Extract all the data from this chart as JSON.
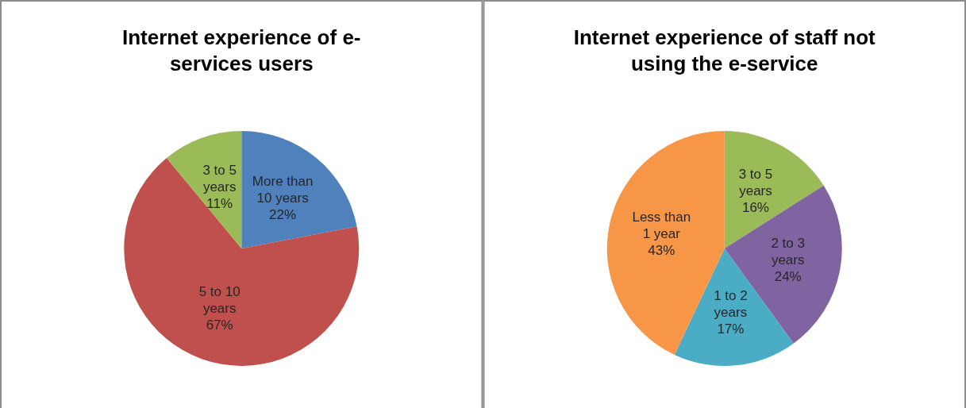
{
  "chart_data": [
    {
      "type": "pie",
      "title": "Internet experience of e-\nservices users",
      "categories": [
        "More than 10 years",
        "5 to 10 years",
        "3 to 5 years"
      ],
      "values": [
        22,
        67,
        11
      ],
      "colors": [
        "#4f81bd",
        "#c0504d",
        "#9bbb59"
      ],
      "value_labels": [
        "22%",
        "67%",
        "11%"
      ]
    },
    {
      "type": "pie",
      "title": "Internet experience of staff not\nusing the e-service",
      "categories": [
        "3 to 5 years",
        "2 to 3 years",
        "1 to 2 years",
        "Less than 1 year"
      ],
      "values": [
        16,
        24,
        17,
        43
      ],
      "colors": [
        "#9bbb59",
        "#8064a2",
        "#4bacc6",
        "#f79646"
      ],
      "value_labels": [
        "16%",
        "24%",
        "17%",
        "43%"
      ]
    }
  ]
}
